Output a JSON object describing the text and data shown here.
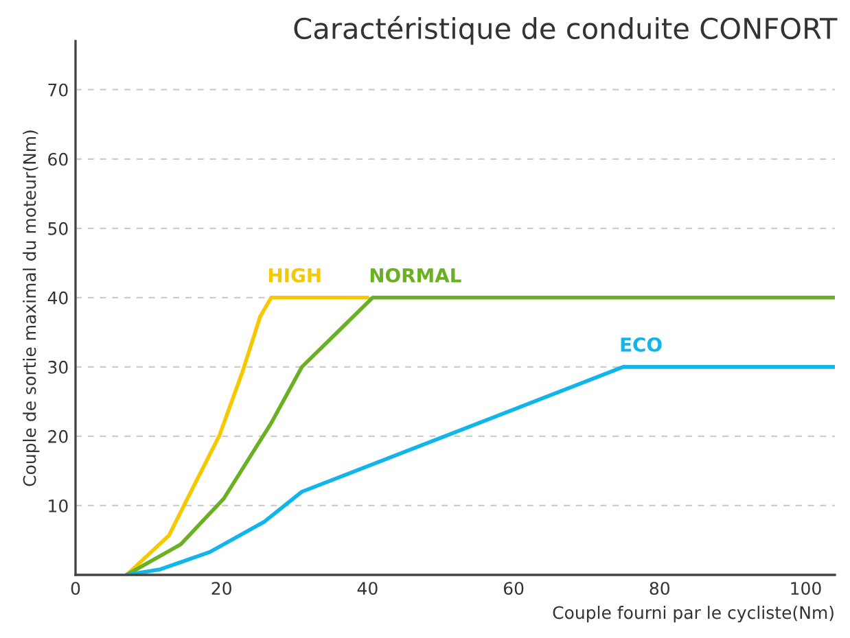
{
  "chart_data": {
    "type": "line",
    "title": "Caractéristique de conduite CONFORT",
    "xlabel": "Couple fourni par le cycliste(Nm)",
    "ylabel": "Couple de sortie maximal du moteur(Nm)",
    "xlim": [
      0,
      104
    ],
    "ylim": [
      0,
      77
    ],
    "xticks": [
      0,
      20,
      40,
      60,
      80,
      100
    ],
    "yticks": [
      10,
      20,
      30,
      40,
      50,
      60,
      70
    ],
    "grid": "y",
    "series": [
      {
        "name": "HIGH",
        "color": "#f5c800",
        "x": [
          7,
          12.8,
          15.9,
          19.7,
          22.9,
          25.3,
          26.8,
          40
        ],
        "values": [
          0,
          5.7,
          12.2,
          20.1,
          29.4,
          37.3,
          40,
          40
        ]
      },
      {
        "name": "NORMAL",
        "color": "#6ab023",
        "x": [
          7,
          14.4,
          20.3,
          26.8,
          31,
          40.7,
          104
        ],
        "values": [
          0,
          4.4,
          11,
          21.9,
          30,
          40,
          40
        ]
      },
      {
        "name": "ECO",
        "color": "#12b5ea",
        "x": [
          7,
          11.6,
          18.4,
          25.9,
          31,
          75,
          104
        ],
        "values": [
          0,
          0.8,
          3.3,
          7.7,
          12,
          30,
          30
        ]
      }
    ]
  }
}
